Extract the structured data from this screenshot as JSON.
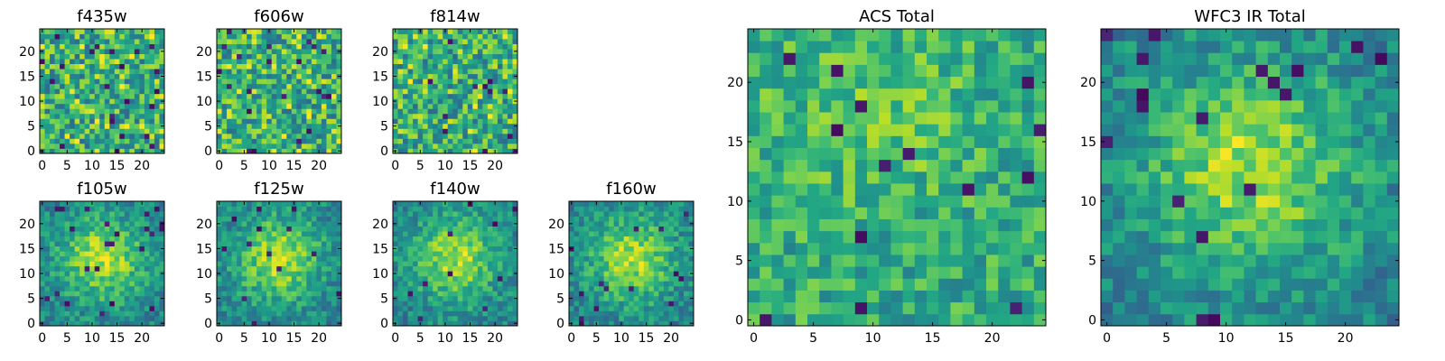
{
  "chart_data": [
    {
      "type": "heatmap",
      "title": "f435w",
      "grid_size": 25,
      "colormap": "viridis",
      "xticks": [
        "0",
        "5",
        "10",
        "15",
        "20"
      ],
      "yticks": [
        "0",
        "5",
        "10",
        "15",
        "20"
      ],
      "xlim": [
        -0.5,
        24.5
      ],
      "ylim": [
        -0.5,
        24.5
      ],
      "pattern": "noise",
      "seed": 11
    },
    {
      "type": "heatmap",
      "title": "f606w",
      "grid_size": 25,
      "colormap": "viridis",
      "xticks": [
        "0",
        "5",
        "10",
        "15",
        "20"
      ],
      "yticks": [
        "0",
        "5",
        "10",
        "15",
        "20"
      ],
      "xlim": [
        -0.5,
        24.5
      ],
      "ylim": [
        -0.5,
        24.5
      ],
      "pattern": "noise",
      "seed": 23
    },
    {
      "type": "heatmap",
      "title": "f814w",
      "grid_size": 25,
      "colormap": "viridis",
      "xticks": [
        "0",
        "5",
        "10",
        "15",
        "20"
      ],
      "yticks": [
        "0",
        "5",
        "10",
        "15",
        "20"
      ],
      "xlim": [
        -0.5,
        24.5
      ],
      "ylim": [
        -0.5,
        24.5
      ],
      "pattern": "noise",
      "seed": 37
    },
    {
      "type": "heatmap",
      "title": "f105w",
      "grid_size": 25,
      "colormap": "viridis",
      "xticks": [
        "0",
        "5",
        "10",
        "15",
        "20"
      ],
      "yticks": [
        "0",
        "5",
        "10",
        "15",
        "20"
      ],
      "xlim": [
        -0.5,
        24.5
      ],
      "ylim": [
        -0.5,
        24.5
      ],
      "pattern": "blob",
      "seed": 41
    },
    {
      "type": "heatmap",
      "title": "f125w",
      "grid_size": 25,
      "colormap": "viridis",
      "xticks": [
        "0",
        "5",
        "10",
        "15",
        "20"
      ],
      "yticks": [
        "0",
        "5",
        "10",
        "15",
        "20"
      ],
      "xlim": [
        -0.5,
        24.5
      ],
      "ylim": [
        -0.5,
        24.5
      ],
      "pattern": "blob",
      "seed": 53
    },
    {
      "type": "heatmap",
      "title": "f140w",
      "grid_size": 25,
      "colormap": "viridis",
      "xticks": [
        "0",
        "5",
        "10",
        "15",
        "20"
      ],
      "yticks": [
        "0",
        "5",
        "10",
        "15",
        "20"
      ],
      "xlim": [
        -0.5,
        24.5
      ],
      "ylim": [
        -0.5,
        24.5
      ],
      "pattern": "blob",
      "seed": 67
    },
    {
      "type": "heatmap",
      "title": "f160w",
      "grid_size": 25,
      "colormap": "viridis",
      "xticks": [
        "0",
        "5",
        "10",
        "15",
        "20"
      ],
      "yticks": [
        "0",
        "5",
        "10",
        "15",
        "20"
      ],
      "xlim": [
        -0.5,
        24.5
      ],
      "ylim": [
        -0.5,
        24.5
      ],
      "pattern": "blob",
      "seed": 79
    },
    {
      "type": "heatmap",
      "title": "ACS Total",
      "grid_size": 25,
      "colormap": "viridis",
      "xticks": [
        "0",
        "5",
        "10",
        "15",
        "20"
      ],
      "yticks": [
        "0",
        "5",
        "10",
        "15",
        "20"
      ],
      "xlim": [
        -0.5,
        24.5
      ],
      "ylim": [
        -0.5,
        24.5
      ],
      "pattern": "smooth-noise",
      "seed": 97
    },
    {
      "type": "heatmap",
      "title": "WFC3 IR Total",
      "grid_size": 25,
      "colormap": "viridis",
      "xticks": [
        "0",
        "5",
        "10",
        "15",
        "20"
      ],
      "yticks": [
        "0",
        "5",
        "10",
        "15",
        "20"
      ],
      "xlim": [
        -0.5,
        24.5
      ],
      "ylim": [
        -0.5,
        24.5
      ],
      "pattern": "blob",
      "seed": 101
    }
  ]
}
